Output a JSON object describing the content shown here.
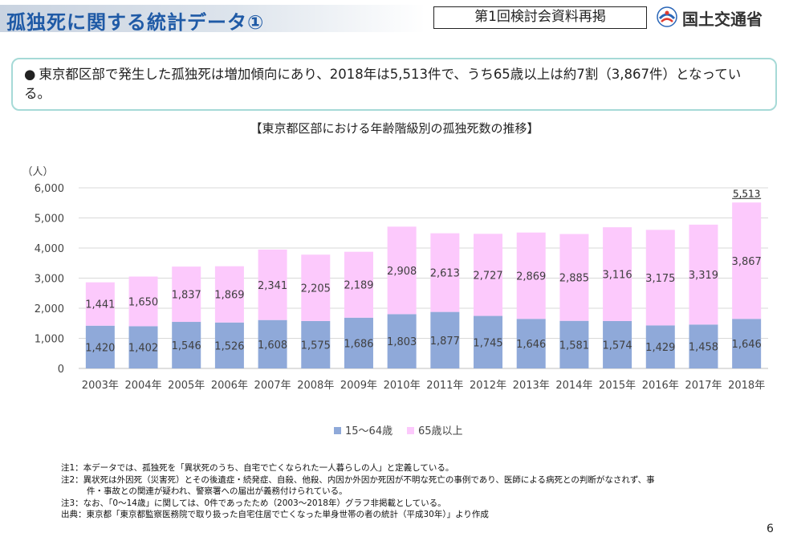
{
  "header": {
    "title": "孤独死に関する統計データ①",
    "badge": "第1回検討会資料再掲",
    "ministry": "国土交通省"
  },
  "summary": {
    "bullet": "●",
    "text": "東京都区部で発生した孤独死は増加傾向にあり、2018年は5,513件で、うち65歳以上は約7割（3,867件）となっている。"
  },
  "colors": {
    "series_15_64": "#8fa9d9",
    "series_65plus": "#fcc9fc",
    "title_blue": "#1f5aa6",
    "summary_border": "#a6dad7"
  },
  "chart_data": {
    "type": "bar",
    "stacked": true,
    "title": "【東京都区部における年齢階級別の孤独死数の推移】",
    "ylabel": "（人）",
    "ylim": [
      0,
      6000
    ],
    "yticks": [
      "0",
      "1,000",
      "2,000",
      "3,000",
      "4,000",
      "5,000",
      "6,000"
    ],
    "grid": true,
    "legend_position": "bottom",
    "categories": [
      "2003年",
      "2004年",
      "2005年",
      "2006年",
      "2007年",
      "2008年",
      "2009年",
      "2010年",
      "2011年",
      "2012年",
      "2013年",
      "2014年",
      "2015年",
      "2016年",
      "2017年",
      "2018年"
    ],
    "series": [
      {
        "name": "15～64歳",
        "values": [
          1420,
          1402,
          1546,
          1526,
          1608,
          1575,
          1686,
          1803,
          1877,
          1745,
          1646,
          1581,
          1574,
          1429,
          1458,
          1646
        ],
        "labels": [
          "1,420",
          "1,402",
          "1,546",
          "1,526",
          "1,608",
          "1,575",
          "1,686",
          "1,803",
          "1,877",
          "1,745",
          "1,646",
          "1,581",
          "1,574",
          "1,429",
          "1,458",
          "1,646"
        ]
      },
      {
        "name": "65歳以上",
        "values": [
          1441,
          1650,
          1837,
          1869,
          2341,
          2205,
          2189,
          2908,
          2613,
          2727,
          2869,
          2885,
          3116,
          3175,
          3319,
          3867
        ],
        "labels": [
          "1,441",
          "1,650",
          "1,837",
          "1,869",
          "2,341",
          "2,205",
          "2,189",
          "2,908",
          "2,613",
          "2,727",
          "2,869",
          "2,885",
          "3,116",
          "3,175",
          "3,319",
          "3,867"
        ]
      }
    ],
    "annotations": [
      {
        "category": "2018年",
        "value": 5513,
        "text": "5,513"
      }
    ]
  },
  "notes": [
    "注1：本データでは、孤独死を「異状死のうち、自宅で亡くなられた一人暮らしの人」と定義している。",
    "注2：異状死は外因死（災害死）とその後遺症・続発症、自殺、他殺、内因か外因か死因が不明な死亡の事例であり、医師による病死との判断がなされず、事",
    "件・事故との関連が疑われ、警察署への届出が義務付けられている。",
    "注3：なお、「0～14歳」に関しては、0件であったため（2003～2018年）グラフ非掲載としている。",
    "出典：東京都「東京都監察医務院で取り扱った自宅住居で亡くなった単身世帯の者の統計（平成30年）」より作成"
  ],
  "page_number": "6"
}
